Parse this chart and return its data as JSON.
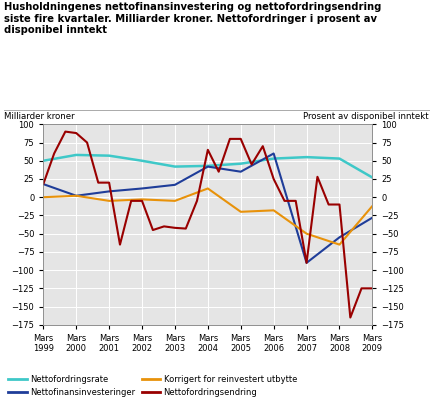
{
  "title_line1": "Husholdningenes nettofinansinvestering og nettofordringsendring",
  "title_line2": "siste fire kvartaler. Milliarder kroner. Nettofordringer i prosent av",
  "title_line3": "disponibel inntekt",
  "ylabel_left": "Milliarder kroner",
  "ylabel_right": "Prosent av disponibel inntekt",
  "xlabels": [
    "Mars\n1999",
    "Mars\n2000",
    "Mars\n2001",
    "Mars\n2002",
    "Mars\n2003",
    "Mars\n2004",
    "Mars\n2005",
    "Mars\n2006",
    "Mars\n2007",
    "Mars\n2008",
    "Mars\n2009"
  ],
  "ylim": [
    -175,
    100
  ],
  "yticks": [
    -175,
    -150,
    -125,
    -100,
    -75,
    -50,
    -25,
    0,
    25,
    50,
    75,
    100
  ],
  "background_color": "#e5e5e5",
  "grid_color": "#ffffff",
  "nettofordringsrate": {
    "color": "#3ec8c8",
    "label": "Nettofordringsrate",
    "x": [
      0,
      1,
      2,
      3,
      4,
      5,
      6,
      7,
      8,
      9,
      10
    ],
    "y": [
      50,
      58,
      57,
      50,
      42,
      43,
      46,
      53,
      55,
      53,
      27
    ]
  },
  "nettofinansinvesteringer": {
    "color": "#1f3d99",
    "label": "Nettofinansinvesteringer",
    "x": [
      0,
      1,
      2,
      3,
      4,
      5,
      6,
      7,
      8,
      9,
      10
    ],
    "y": [
      18,
      2,
      8,
      12,
      17,
      42,
      35,
      60,
      -90,
      -55,
      -28
    ]
  },
  "korrigert": {
    "color": "#e8920a",
    "label": "Korrigert for reinvestert utbytte",
    "x": [
      0,
      1,
      2,
      3,
      4,
      5,
      6,
      7,
      8,
      9,
      10
    ],
    "y": [
      0,
      2,
      -5,
      -3,
      -5,
      12,
      -20,
      -18,
      -50,
      -65,
      -12
    ]
  },
  "nettofordringsendring": {
    "color": "#990000",
    "label": "Nettofordringsendring",
    "x": [
      0,
      0.33,
      0.67,
      1,
      1.33,
      1.67,
      2,
      2.33,
      2.67,
      3,
      3.33,
      3.67,
      4,
      4.33,
      4.67,
      5,
      5.33,
      5.67,
      6,
      6.33,
      6.67,
      7,
      7.33,
      7.67,
      8,
      8.33,
      8.67,
      9,
      9.33,
      9.67,
      10
    ],
    "y": [
      18,
      60,
      90,
      88,
      75,
      20,
      20,
      -65,
      -5,
      -5,
      -45,
      -40,
      -42,
      -43,
      -5,
      65,
      35,
      80,
      80,
      45,
      70,
      25,
      -5,
      -5,
      -90,
      28,
      -10,
      -10,
      -165,
      -125,
      -125
    ]
  }
}
